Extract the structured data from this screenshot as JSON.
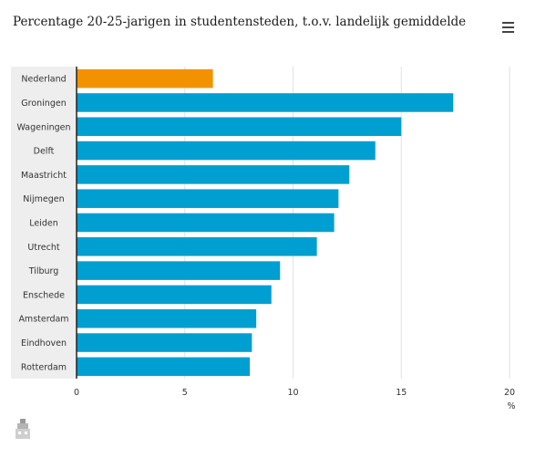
{
  "title": "Percentage 20-25-jarigen in studentensteden, t.o.v. landelijk gemiddelde",
  "icons": {
    "menu": "hamburger-menu-icon",
    "logo": "cbs-logo-icon"
  },
  "colors": {
    "highlight": "#f39200",
    "bar": "#009fd1",
    "label_band": "#eeeeee",
    "grid": "#e2e2e2",
    "axis": "#222222"
  },
  "chart_data": {
    "type": "bar",
    "orientation": "horizontal",
    "title": "Percentage 20-25-jarigen in studentensteden, t.o.v. landelijk gemiddelde",
    "categories": [
      "Nederland",
      "Groningen",
      "Wageningen",
      "Delft",
      "Maastricht",
      "Nijmegen",
      "Leiden",
      "Utrecht",
      "Tilburg",
      "Enschede",
      "Amsterdam",
      "Eindhoven",
      "Rotterdam"
    ],
    "values": [
      6.3,
      17.4,
      15.0,
      13.8,
      12.6,
      12.1,
      11.9,
      11.1,
      9.4,
      9.0,
      8.3,
      8.1,
      8.0
    ],
    "highlight": "Nederland",
    "xlim": [
      0,
      20
    ],
    "xticks": [
      0,
      5,
      10,
      15,
      20
    ],
    "xunit": "%",
    "xgrid": true
  }
}
